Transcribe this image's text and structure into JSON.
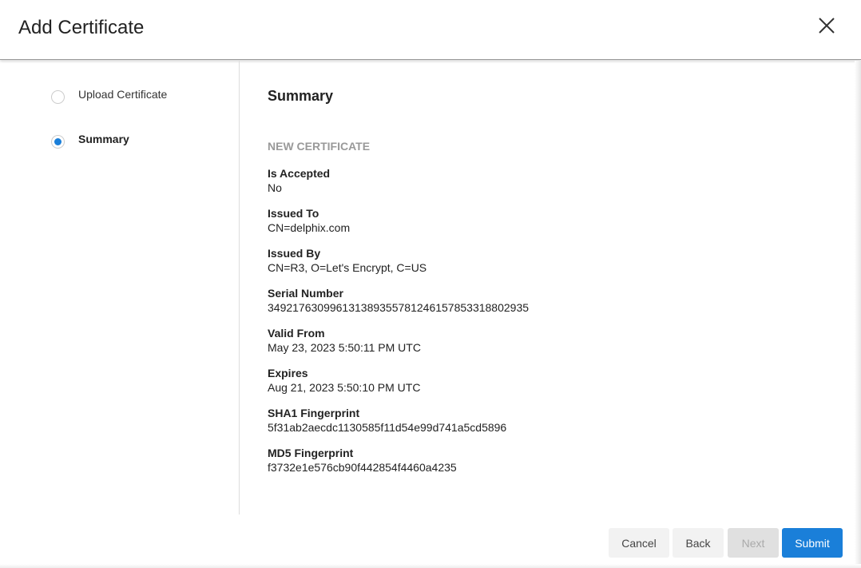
{
  "dialog": {
    "title": "Add Certificate",
    "close_icon": "close-icon"
  },
  "steps": [
    {
      "label": "Upload Certificate",
      "active": false
    },
    {
      "label": "Summary",
      "active": true
    }
  ],
  "summary": {
    "heading": "Summary",
    "section": "NEW CERTIFICATE",
    "fields": [
      {
        "label": "Is Accepted",
        "value": "No"
      },
      {
        "label": "Issued To",
        "value": "CN=delphix.com"
      },
      {
        "label": "Issued By",
        "value": "CN=R3, O=Let's Encrypt, C=US"
      },
      {
        "label": "Serial Number",
        "value": "349217630996131389355781246157853318802935"
      },
      {
        "label": "Valid From",
        "value": "May 23, 2023 5:50:11 PM UTC"
      },
      {
        "label": "Expires",
        "value": "Aug 21, 2023 5:50:10 PM UTC"
      },
      {
        "label": "SHA1 Fingerprint",
        "value": "5f31ab2aecdc1130585f11d54e99d741a5cd5896"
      },
      {
        "label": "MD5 Fingerprint",
        "value": "f3732e1e576cb90f442854f4460a4235"
      }
    ]
  },
  "footer": {
    "cancel": "Cancel",
    "back": "Back",
    "next": "Next",
    "submit": "Submit"
  },
  "colors": {
    "accent": "#1a7fd9"
  }
}
